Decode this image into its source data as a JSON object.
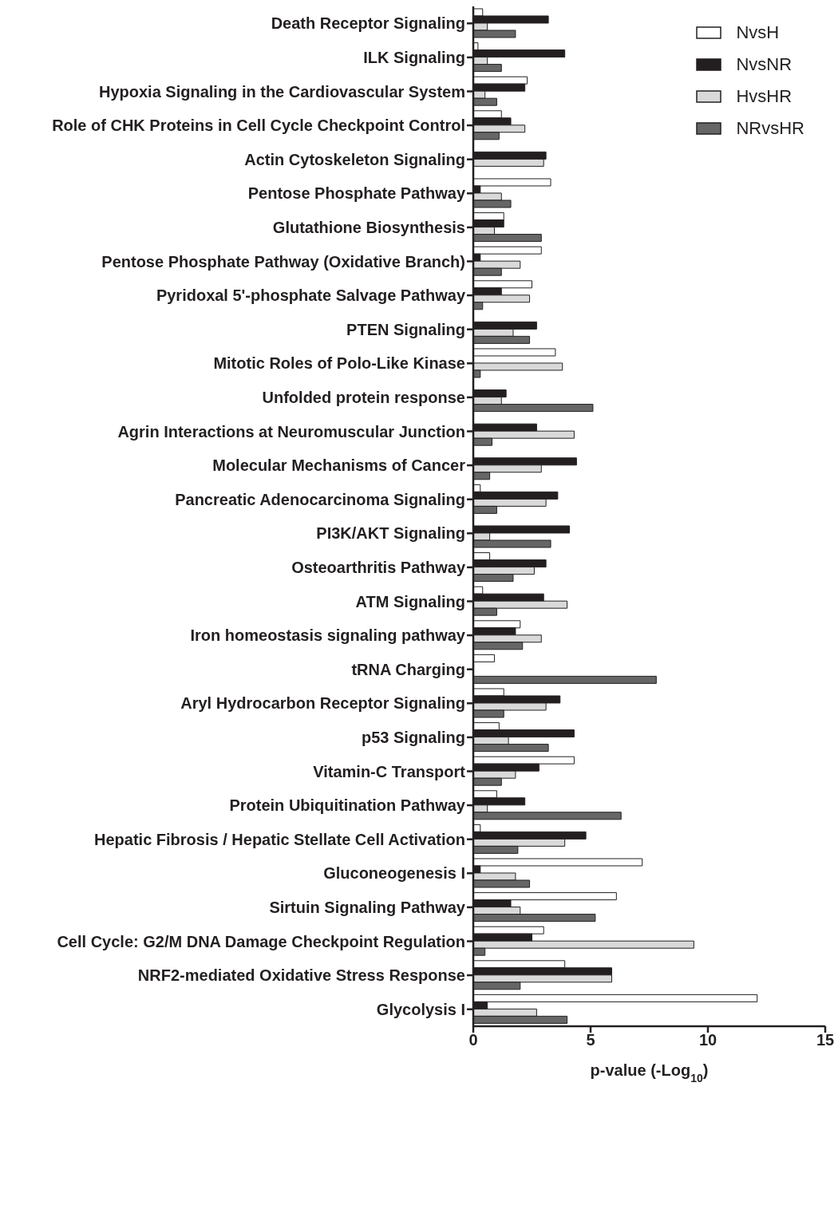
{
  "chart_data": {
    "type": "bar",
    "orientation": "horizontal",
    "xlabel": "p-value (-Log$_{10}$)",
    "categories": [
      "Death Receptor Signaling",
      "ILK Signaling",
      "Hypoxia Signaling in the Cardiovascular System",
      "Role of CHK Proteins in Cell Cycle Checkpoint Control",
      "Actin Cytoskeleton Signaling",
      "Pentose Phosphate Pathway",
      "Glutathione Biosynthesis",
      "Pentose Phosphate Pathway (Oxidative Branch)",
      "Pyridoxal 5'-phosphate Salvage Pathway",
      "PTEN Signaling",
      "Mitotic Roles of Polo-Like Kinase",
      "Unfolded protein response",
      "Agrin Interactions at Neuromuscular Junction",
      "Molecular Mechanisms of Cancer",
      "Pancreatic Adenocarcinoma Signaling",
      "PI3K/AKT Signaling",
      "Osteoarthritis Pathway",
      "ATM Signaling",
      "Iron homeostasis signaling pathway",
      "tRNA Charging",
      "Aryl Hydrocarbon Receptor Signaling",
      "p53 Signaling",
      "Vitamin-C Transport",
      "Protein Ubiquitination Pathway",
      "Hepatic Fibrosis / Hepatic Stellate Cell Activation",
      "Gluconeogenesis I",
      "Sirtuin Signaling Pathway",
      "Cell Cycle: G2/M DNA Damage Checkpoint Regulation",
      "NRF2-mediated Oxidative Stress Response",
      "Glycolysis I"
    ],
    "series": [
      {
        "name": "NvsH",
        "color": "#ffffff",
        "values": [
          0.4,
          0.2,
          2.3,
          1.2,
          null,
          3.3,
          1.3,
          2.9,
          2.5,
          null,
          3.5,
          null,
          null,
          null,
          0.3,
          null,
          0.7,
          0.4,
          2.0,
          0.9,
          1.3,
          1.1,
          4.3,
          1.0,
          0.3,
          7.2,
          6.1,
          3.0,
          3.9,
          12.1
        ]
      },
      {
        "name": "NvsNR",
        "color": "#231f20",
        "values": [
          3.2,
          3.9,
          2.2,
          1.6,
          3.1,
          0.3,
          1.3,
          0.3,
          1.2,
          2.7,
          null,
          1.4,
          2.7,
          4.4,
          3.6,
          4.1,
          3.1,
          3.0,
          1.8,
          null,
          3.7,
          4.3,
          2.8,
          2.2,
          4.8,
          0.3,
          1.6,
          2.5,
          5.9,
          0.6
        ]
      },
      {
        "name": "HvsHR",
        "color": "#d9d9d9",
        "values": [
          0.6,
          0.6,
          0.5,
          2.2,
          3.0,
          1.2,
          0.9,
          2.0,
          2.4,
          1.7,
          3.8,
          1.2,
          4.3,
          2.9,
          3.1,
          0.7,
          2.6,
          4.0,
          2.9,
          null,
          3.1,
          1.5,
          1.8,
          0.6,
          3.9,
          1.8,
          2.0,
          9.4,
          5.9,
          2.7
        ]
      },
      {
        "name": "NRvsHR",
        "color": "#666666",
        "values": [
          1.8,
          1.2,
          1.0,
          1.1,
          null,
          1.6,
          2.9,
          1.2,
          0.4,
          2.4,
          0.3,
          5.1,
          0.8,
          0.7,
          1.0,
          3.3,
          1.7,
          1.0,
          2.1,
          7.8,
          1.3,
          3.2,
          1.2,
          6.3,
          1.9,
          2.4,
          5.2,
          0.5,
          2.0,
          4.0
        ]
      }
    ],
    "xlim": [
      0,
      15
    ],
    "xticks": [
      0,
      5,
      10,
      15
    ],
    "grid": false,
    "legend": "top right"
  }
}
